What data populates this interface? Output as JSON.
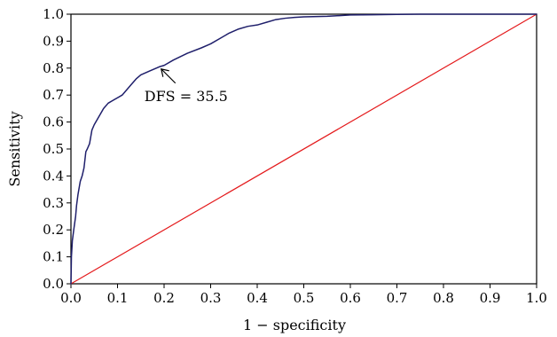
{
  "colors": {
    "roc_line": "#1f1f6b",
    "reference_line": "#e41a1c",
    "axis": "#000000",
    "background": "#ffffff"
  },
  "chart_data": {
    "type": "line",
    "title": "",
    "xlabel": "1 − specificity",
    "ylabel": "Sensitivity",
    "xlim": [
      0.0,
      1.0
    ],
    "ylim": [
      0.0,
      1.0
    ],
    "grid": false,
    "x_ticks": [
      "0.0",
      "0.1",
      "0.2",
      "0.3",
      "0.4",
      "0.5",
      "0.6",
      "0.7",
      "0.8",
      "0.9",
      "1.0"
    ],
    "y_ticks": [
      "0.0",
      "0.1",
      "0.2",
      "0.3",
      "0.4",
      "0.5",
      "0.6",
      "0.7",
      "0.8",
      "0.9",
      "1.0"
    ],
    "series": [
      {
        "x": [
          0.0,
          0.001,
          0.003,
          0.006,
          0.01,
          0.012,
          0.015,
          0.018,
          0.02,
          0.024,
          0.028,
          0.032,
          0.035,
          0.04,
          0.045,
          0.05,
          0.06,
          0.07,
          0.08,
          0.09,
          0.1,
          0.11,
          0.12,
          0.13,
          0.14,
          0.15,
          0.17,
          0.19,
          0.2,
          0.22,
          0.25,
          0.28,
          0.3,
          0.32,
          0.34,
          0.36,
          0.38,
          0.4,
          0.42,
          0.44,
          0.46,
          0.48,
          0.5,
          0.55,
          0.6,
          0.65,
          0.7,
          0.75,
          0.8,
          0.9,
          1.0
        ],
        "y": [
          0.0,
          0.1,
          0.16,
          0.2,
          0.25,
          0.29,
          0.33,
          0.36,
          0.38,
          0.4,
          0.43,
          0.49,
          0.5,
          0.52,
          0.57,
          0.59,
          0.62,
          0.65,
          0.67,
          0.68,
          0.69,
          0.7,
          0.72,
          0.74,
          0.76,
          0.775,
          0.79,
          0.805,
          0.81,
          0.83,
          0.855,
          0.875,
          0.89,
          0.91,
          0.93,
          0.945,
          0.955,
          0.96,
          0.97,
          0.98,
          0.985,
          0.988,
          0.99,
          0.992,
          0.997,
          0.998,
          0.999,
          1.0,
          1.0,
          1.0,
          1.0
        ]
      },
      {
        "x": [
          0.0,
          1.0
        ],
        "y": [
          0.0,
          1.0
        ]
      }
    ],
    "annotations": [
      {
        "text": "DFS = 35.5",
        "point": [
          0.19,
          0.81
        ]
      }
    ]
  }
}
